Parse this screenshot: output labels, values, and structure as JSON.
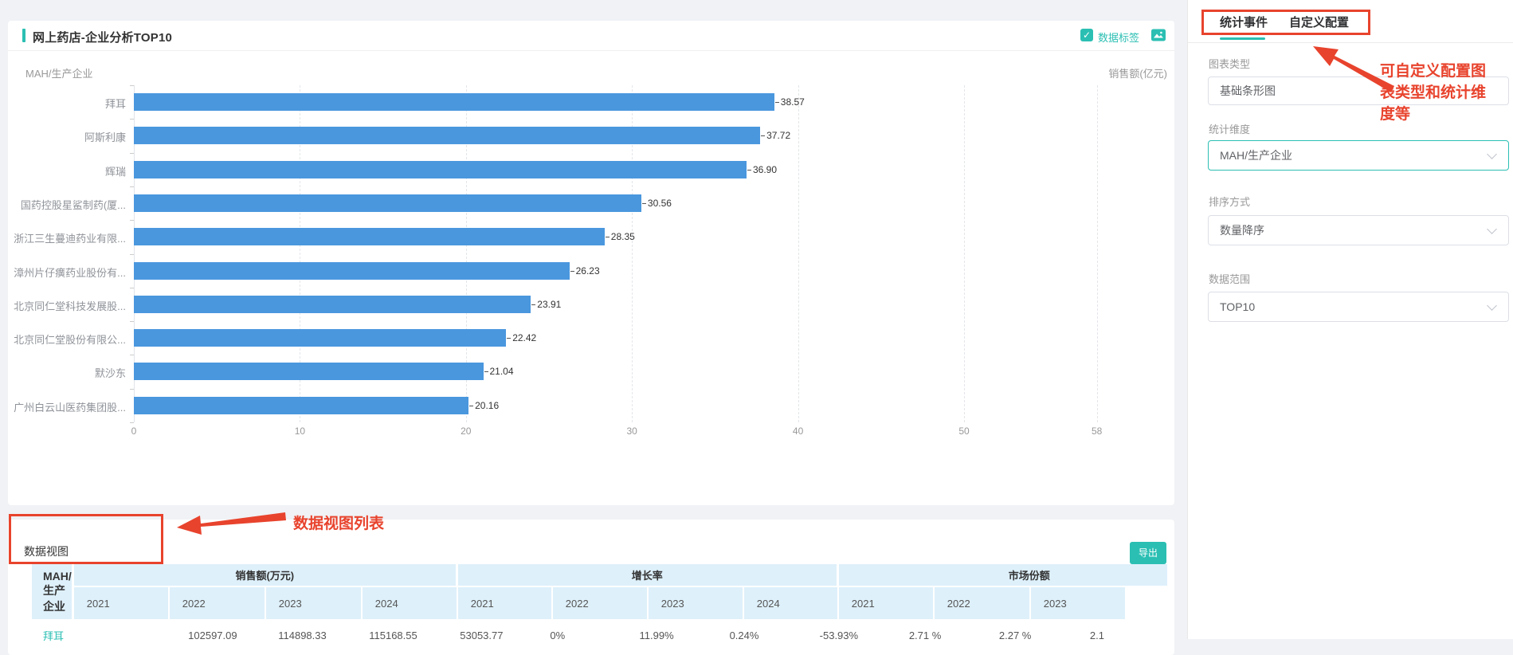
{
  "chart_panel": {
    "title": "网上药店-企业分析TOP10",
    "data_label_toggle": "数据标签",
    "checkmark": "✓"
  },
  "chart_data": {
    "type": "bar",
    "orientation": "horizontal",
    "title": "网上药店-企业分析TOP10",
    "y_axis_label": "MAH/生产企业",
    "x_axis_label": "销售额(亿元)",
    "categories": [
      "拜耳",
      "阿斯利康",
      "辉瑞",
      "国药控股星鲨制药(厦...",
      "浙江三生蔓迪药业有限...",
      "漳州片仔癀药业股份有...",
      "北京同仁堂科技发展股...",
      "北京同仁堂股份有限公...",
      "默沙东",
      "广州白云山医药集团股..."
    ],
    "values": [
      38.57,
      37.72,
      36.9,
      30.56,
      28.35,
      26.23,
      23.91,
      22.42,
      21.04,
      20.16
    ],
    "value_labels": [
      "38.57",
      "37.72",
      "36.90",
      "30.56",
      "28.35",
      "26.23",
      "23.91",
      "22.42",
      "21.04",
      "20.16"
    ],
    "x_ticks": [
      "0",
      "10",
      "20",
      "30",
      "40",
      "50",
      "58"
    ],
    "x_tick_values": [
      0,
      10,
      20,
      30,
      40,
      50,
      58
    ],
    "xlim": [
      0,
      58
    ],
    "grid": true,
    "legend": false,
    "bar_color": "#4a97de"
  },
  "table": {
    "section_title": "数据视图",
    "export_button": "导出",
    "key_header": "MAH/生产企业",
    "groups": [
      {
        "label": "销售额(万元)",
        "years": [
          "2021",
          "2022",
          "2023",
          "2024"
        ]
      },
      {
        "label": "增长率",
        "years": [
          "2021",
          "2022",
          "2023",
          "2024"
        ]
      },
      {
        "label": "市场份额",
        "years": [
          "2021",
          "2022",
          "2023"
        ]
      }
    ],
    "rows": [
      {
        "name": "拜耳",
        "cells": [
          [
            "102597.09",
            "114898.33",
            "115168.55",
            "53053.77"
          ],
          [
            "0%",
            "11.99%",
            "0.24%",
            "-53.93%"
          ],
          [
            "2.71 %",
            "2.27 %",
            "2.1"
          ]
        ]
      }
    ]
  },
  "sidebar": {
    "tabs": [
      {
        "label": "统计事件",
        "active": true
      },
      {
        "label": "自定义配置",
        "active": false
      }
    ],
    "fields": [
      {
        "label": "图表类型",
        "value": "基础条形图",
        "type": "input"
      },
      {
        "label": "统计维度",
        "value": "MAH/生产企业",
        "type": "select"
      },
      {
        "label": "排序方式",
        "value": "数量降序",
        "type": "select"
      },
      {
        "label": "数据范围",
        "value": "TOP10",
        "type": "select"
      }
    ]
  },
  "annotations": {
    "config_note": "可自定义配置图表类型和统计维度等",
    "table_note": "数据视图列表",
    "color": "#e8432d"
  },
  "colors": {
    "accent_teal": "#2bbfb3",
    "bar_blue": "#4a97de",
    "table_header_bg": "#def0fa",
    "page_bg": "#f0f2f5"
  }
}
